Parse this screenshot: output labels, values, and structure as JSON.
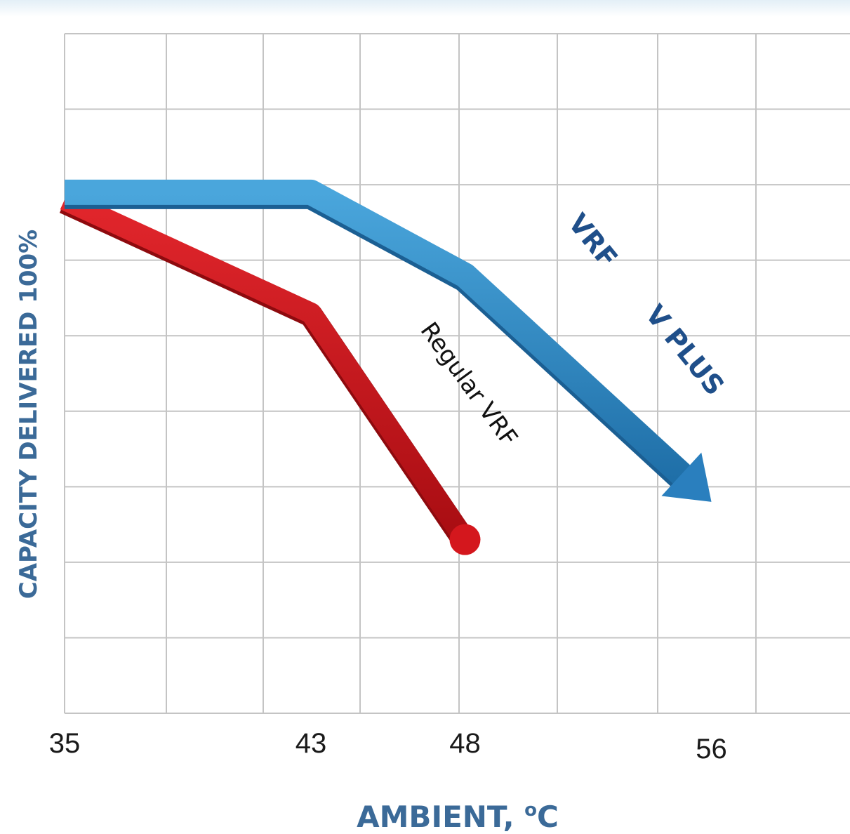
{
  "chart_data": {
    "type": "line",
    "x_ticks": [
      35,
      43,
      48,
      56
    ],
    "xlabel": "AMBIENT, ",
    "xlabel_sup": "o",
    "xlabel_suffix": "C",
    "ylabel": "CAPACITY DELIVERED 100%",
    "xlim": [
      35,
      60.5
    ],
    "ylim": [
      0,
      9
    ],
    "grid": true,
    "series": [
      {
        "name": "VRF V PLUS",
        "color": "#2e86c4",
        "end_marker": "arrow",
        "points": [
          [
            35,
            6.9
          ],
          [
            43,
            6.9
          ],
          [
            48,
            5.8
          ],
          [
            56,
            2.8
          ]
        ]
      },
      {
        "name": "Regular VRF",
        "color": "#c8141b",
        "end_marker": "dot",
        "points": [
          [
            35,
            6.8
          ],
          [
            43,
            5.3
          ],
          [
            48,
            2.3
          ]
        ]
      }
    ],
    "labels": {
      "vplus_part1": "VRF",
      "vplus_part2": "V PLUS",
      "regular": "Regular VRF"
    }
  }
}
